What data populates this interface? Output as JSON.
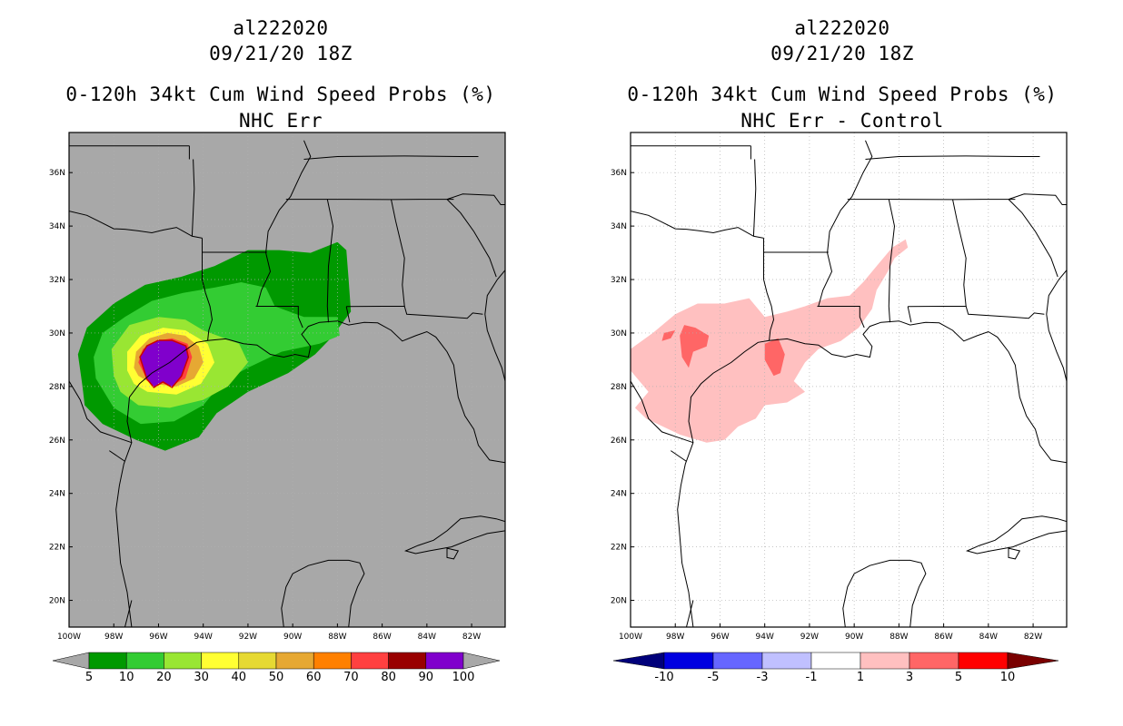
{
  "panels": [
    {
      "storm_id": "al222020",
      "datetime": "09/21/20 18Z",
      "product": "0-120h 34kt Cum Wind Speed Probs (%)",
      "subtitle": "NHC Err",
      "map_background": "#a8a8a8",
      "colorbar": {
        "colors": [
          "#009900",
          "#33cc33",
          "#99e633",
          "#ffff33",
          "#e6d933",
          "#e6a833",
          "#ff8000",
          "#ff4040",
          "#990000",
          "#8000cc"
        ],
        "labels": [
          "5",
          "10",
          "20",
          "30",
          "40",
          "50",
          "60",
          "70",
          "80",
          "90",
          "100"
        ],
        "under_color": "#a8a8a8",
        "over_color": "#a8a8a8"
      }
    },
    {
      "storm_id": "al222020",
      "datetime": "09/21/20 18Z",
      "product": "0-120h 34kt Cum Wind Speed Probs (%)",
      "subtitle": "NHC Err - Control",
      "map_background": "#ffffff",
      "colorbar": {
        "colors": [
          "#0000e0",
          "#6666ff",
          "#c0c0ff",
          "#ffffff",
          "#ffc0c0",
          "#ff6666",
          "#ff0000"
        ],
        "labels": [
          "-10",
          "-5",
          "-3",
          "-1",
          "1",
          "3",
          "5",
          "10"
        ],
        "under_color": "#00007a",
        "over_color": "#7a0000"
      }
    }
  ],
  "axes": {
    "x_ticks": [
      "100W",
      "98W",
      "96W",
      "94W",
      "92W",
      "90W",
      "88W",
      "86W",
      "84W",
      "82W"
    ],
    "y_ticks": [
      "36N",
      "34N",
      "32N",
      "30N",
      "28N",
      "26N",
      "24N",
      "22N",
      "20N"
    ],
    "lon_range": [
      -100,
      -80.5
    ],
    "lat_range": [
      19,
      37.5
    ]
  },
  "chart_data": [
    {
      "type": "heatmap",
      "title": "0-120h 34kt Cum Wind Speed Probs (%) — NHC Err",
      "storm": "al222020",
      "valid": "09/21/20 18Z",
      "units": "%",
      "levels": [
        5,
        10,
        20,
        30,
        40,
        50,
        60,
        70,
        80,
        90,
        100
      ],
      "contours": [
        {
          "level": 5,
          "polygon_lonlat": [
            [
              -99.4,
              28.0
            ],
            [
              -99.6,
              29.2
            ],
            [
              -99.2,
              30.2
            ],
            [
              -98.0,
              31.1
            ],
            [
              -96.6,
              31.8
            ],
            [
              -95.0,
              32.1
            ],
            [
              -93.5,
              32.5
            ],
            [
              -92.0,
              33.1
            ],
            [
              -90.6,
              33.1
            ],
            [
              -89.2,
              33.0
            ],
            [
              -88.0,
              33.4
            ],
            [
              -87.6,
              33.1
            ],
            [
              -87.5,
              32.0
            ],
            [
              -87.4,
              30.8
            ],
            [
              -88.3,
              29.8
            ],
            [
              -89.0,
              29.2
            ],
            [
              -90.2,
              28.5
            ],
            [
              -92.0,
              27.8
            ],
            [
              -93.4,
              27.0
            ],
            [
              -94.2,
              26.1
            ],
            [
              -95.7,
              25.6
            ],
            [
              -97.0,
              26.0
            ],
            [
              -98.5,
              26.6
            ],
            [
              -99.3,
              27.3
            ]
          ]
        },
        {
          "level": 10,
          "polygon_lonlat": [
            [
              -98.8,
              28.3
            ],
            [
              -98.9,
              29.1
            ],
            [
              -98.5,
              30.0
            ],
            [
              -97.5,
              30.6
            ],
            [
              -96.3,
              31.2
            ],
            [
              -94.9,
              31.5
            ],
            [
              -93.5,
              31.7
            ],
            [
              -92.3,
              31.9
            ],
            [
              -91.2,
              31.7
            ],
            [
              -90.8,
              31.0
            ],
            [
              -89.5,
              30.6
            ],
            [
              -88.0,
              30.6
            ],
            [
              -87.9,
              29.9
            ],
            [
              -88.8,
              29.6
            ],
            [
              -90.5,
              29.3
            ],
            [
              -92.0,
              28.7
            ],
            [
              -93.1,
              28.2
            ],
            [
              -94.0,
              27.3
            ],
            [
              -95.3,
              26.7
            ],
            [
              -96.8,
              26.6
            ],
            [
              -98.0,
              27.2
            ]
          ]
        },
        {
          "level": 20,
          "polygon_lonlat": [
            [
              -98.0,
              28.4
            ],
            [
              -98.1,
              29.4
            ],
            [
              -97.3,
              30.3
            ],
            [
              -96.0,
              30.6
            ],
            [
              -94.8,
              30.5
            ],
            [
              -94.0,
              30.1
            ],
            [
              -92.4,
              29.6
            ],
            [
              -92.0,
              28.9
            ],
            [
              -92.9,
              28.0
            ],
            [
              -94.0,
              27.5
            ],
            [
              -95.5,
              27.2
            ],
            [
              -96.9,
              27.3
            ],
            [
              -97.7,
              27.8
            ]
          ]
        },
        {
          "level": 30,
          "polygon_lonlat": [
            [
              -97.4,
              28.6
            ],
            [
              -97.4,
              29.3
            ],
            [
              -96.8,
              29.9
            ],
            [
              -95.8,
              30.2
            ],
            [
              -94.8,
              30.1
            ],
            [
              -93.8,
              29.6
            ],
            [
              -93.5,
              28.9
            ],
            [
              -94.1,
              28.1
            ],
            [
              -95.2,
              27.7
            ],
            [
              -96.5,
              27.8
            ],
            [
              -97.1,
              28.1
            ]
          ]
        },
        {
          "level": 50,
          "polygon_lonlat": [
            [
              -97.1,
              28.7
            ],
            [
              -97.0,
              29.3
            ],
            [
              -96.4,
              29.8
            ],
            [
              -95.6,
              30.0
            ],
            [
              -94.8,
              29.9
            ],
            [
              -94.2,
              29.5
            ],
            [
              -94.0,
              28.9
            ],
            [
              -94.4,
              28.3
            ],
            [
              -95.2,
              28.0
            ],
            [
              -96.3,
              28.1
            ],
            [
              -96.9,
              28.4
            ]
          ]
        },
        {
          "level": 70,
          "polygon_lonlat": [
            [
              -96.9,
              28.9
            ],
            [
              -96.7,
              29.4
            ],
            [
              -96.1,
              29.7
            ],
            [
              -95.4,
              29.8
            ],
            [
              -94.7,
              29.6
            ],
            [
              -94.5,
              29.1
            ],
            [
              -94.8,
              28.3
            ],
            [
              -95.5,
              28.0
            ],
            [
              -96.0,
              28.2
            ],
            [
              -96.6,
              28.4
            ]
          ]
        },
        {
          "level": 90,
          "polygon_lonlat": [
            [
              -96.8,
              29.1
            ],
            [
              -96.5,
              29.5
            ],
            [
              -96.0,
              29.7
            ],
            [
              -95.4,
              29.7
            ],
            [
              -94.8,
              29.5
            ],
            [
              -94.7,
              29.1
            ],
            [
              -95.0,
              28.4
            ],
            [
              -95.4,
              28.0
            ],
            [
              -95.8,
              28.2
            ],
            [
              -96.2,
              28.0
            ],
            [
              -96.5,
              28.3
            ]
          ]
        }
      ]
    },
    {
      "type": "heatmap",
      "title": "0-120h 34kt Cum Wind Speed Probs (%) — NHC Err - Control",
      "storm": "al222020",
      "valid": "09/21/20 18Z",
      "units": "%",
      "levels": [
        -10,
        -5,
        -3,
        -1,
        1,
        3,
        5,
        10
      ],
      "contours": [
        {
          "level": 1,
          "polygon_lonlat": [
            [
              -100.0,
              29.4
            ],
            [
              -99.0,
              30.0
            ],
            [
              -98.0,
              30.7
            ],
            [
              -97.0,
              31.1
            ],
            [
              -95.8,
              31.1
            ],
            [
              -94.7,
              31.3
            ],
            [
              -94.0,
              30.6
            ],
            [
              -93.0,
              30.8
            ],
            [
              -92.2,
              31.0
            ],
            [
              -91.2,
              31.3
            ],
            [
              -90.2,
              31.4
            ],
            [
              -89.6,
              31.9
            ],
            [
              -88.8,
              32.7
            ],
            [
              -88.3,
              33.2
            ],
            [
              -87.7,
              33.5
            ],
            [
              -87.6,
              33.2
            ],
            [
              -88.2,
              32.8
            ],
            [
              -88.5,
              32.3
            ],
            [
              -89.0,
              31.6
            ],
            [
              -89.2,
              30.9
            ],
            [
              -89.8,
              30.2
            ],
            [
              -90.6,
              29.7
            ],
            [
              -91.6,
              29.4
            ],
            [
              -92.2,
              28.9
            ],
            [
              -92.7,
              28.2
            ],
            [
              -92.2,
              27.8
            ],
            [
              -93.0,
              27.4
            ],
            [
              -94.0,
              27.3
            ],
            [
              -94.4,
              26.8
            ],
            [
              -95.2,
              26.5
            ],
            [
              -95.8,
              26.0
            ],
            [
              -96.6,
              25.9
            ],
            [
              -97.8,
              26.2
            ],
            [
              -99.3,
              26.8
            ],
            [
              -99.8,
              27.2
            ],
            [
              -99.2,
              27.8
            ],
            [
              -100.0,
              28.6
            ]
          ]
        },
        {
          "level": 3,
          "polygon_lonlat": [
            [
              -97.8,
              29.9
            ],
            [
              -97.6,
              30.3
            ],
            [
              -97.1,
              30.2
            ],
            [
              -96.5,
              29.9
            ],
            [
              -96.6,
              29.5
            ],
            [
              -97.2,
              29.3
            ],
            [
              -97.4,
              28.7
            ],
            [
              -97.7,
              29.1
            ]
          ]
        },
        {
          "level": 3,
          "polygon_lonlat": [
            [
              -94.0,
              29.6
            ],
            [
              -93.4,
              29.8
            ],
            [
              -93.1,
              29.2
            ],
            [
              -93.3,
              28.5
            ],
            [
              -93.6,
              28.4
            ],
            [
              -94.0,
              29.0
            ]
          ]
        },
        {
          "level": 3,
          "polygon_lonlat": [
            [
              -98.5,
              30.0
            ],
            [
              -98.0,
              30.1
            ],
            [
              -98.2,
              29.8
            ],
            [
              -98.6,
              29.7
            ]
          ]
        }
      ]
    }
  ]
}
